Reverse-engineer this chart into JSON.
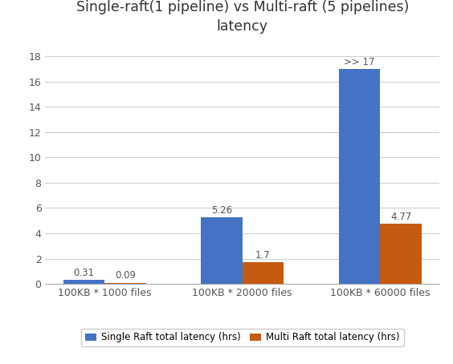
{
  "title": "Single-raft(1 pipeline) vs Multi-raft (5 pipelines)\nlatency",
  "categories": [
    "100KB * 1000 files",
    "100KB * 20000 files",
    "100KB * 60000 files"
  ],
  "single_raft": [
    0.31,
    5.26,
    17.0
  ],
  "multi_raft": [
    0.09,
    1.7,
    4.77
  ],
  "single_raft_labels": [
    "0.31",
    "5.26",
    ">> 17"
  ],
  "multi_raft_labels": [
    "0.09",
    "1.7",
    "4.77"
  ],
  "single_raft_color": "#4472C4",
  "multi_raft_color": "#C55A11",
  "legend_single": "Single Raft total latency (hrs)",
  "legend_multi": "Multi Raft total latency (hrs)",
  "ylim": [
    0,
    19
  ],
  "yticks": [
    0,
    2,
    4,
    6,
    8,
    10,
    12,
    14,
    16,
    18
  ],
  "background_color": "#ffffff",
  "bar_width": 0.3,
  "title_fontsize": 12.5
}
